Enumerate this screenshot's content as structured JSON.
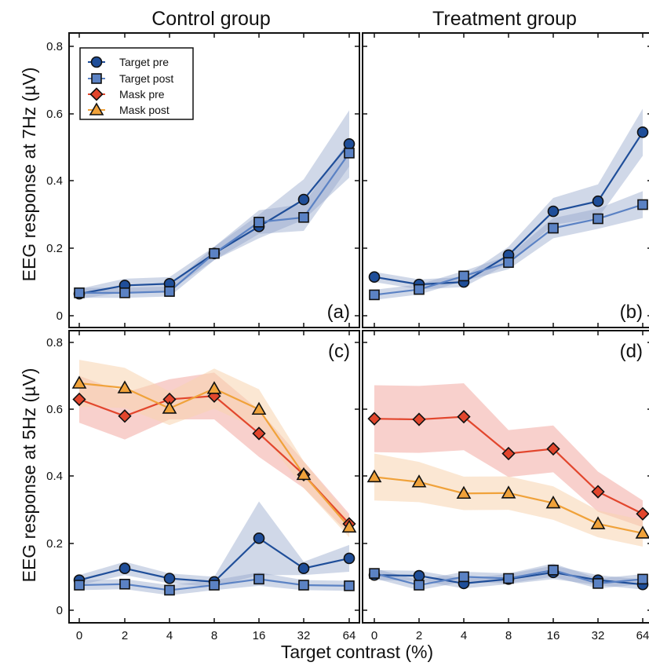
{
  "colors": {
    "target_pre": "#1f4e99",
    "target_post": "#5b82c4",
    "mask_pre": "#e2462d",
    "mask_post": "#f0a23a",
    "band_target": "#8ea3c9",
    "band_mask_pre": "#f3a9a2",
    "band_mask_post": "#f8d3ae"
  },
  "column_titles": [
    "Control group",
    "Treatment group"
  ],
  "ylabel_top": "EEG response at 7Hz (µV)",
  "ylabel_bottom": "EEG response at 5Hz (µV)",
  "xlabel": "Target contrast (%)",
  "legend": {
    "placement": "top-left of panel (a)",
    "items": [
      {
        "label": "Target pre",
        "marker": "circle",
        "color_key": "target_pre"
      },
      {
        "label": "Target post",
        "marker": "square",
        "color_key": "target_post"
      },
      {
        "label": "Mask pre",
        "marker": "diamond",
        "color_key": "mask_pre"
      },
      {
        "label": "Mask post",
        "marker": "triangle",
        "color_key": "mask_post"
      }
    ]
  },
  "chart_data": [
    {
      "type": "line",
      "panel": "(a)",
      "categories": [
        "0",
        "2",
        "4",
        "8",
        "16",
        "32",
        "64"
      ],
      "ylim": [
        -0.03,
        0.83
      ],
      "yticks": [
        "0",
        "0.2",
        "0.4",
        "0.6",
        "0.8"
      ],
      "series": [
        {
          "name": "Target pre",
          "values": [
            0.065,
            0.09,
            0.095,
            0.185,
            0.265,
            0.345,
            0.51
          ],
          "band": [
            0.015,
            0.02,
            0.02,
            0.02,
            0.035,
            0.06,
            0.1
          ]
        },
        {
          "name": "Target post",
          "values": [
            0.068,
            0.068,
            0.072,
            0.185,
            0.278,
            0.292,
            0.483
          ],
          "band": [
            0.015,
            0.015,
            0.015,
            0.02,
            0.035,
            0.04,
            0.04
          ]
        }
      ]
    },
    {
      "type": "line",
      "panel": "(b)",
      "categories": [
        "0",
        "2",
        "4",
        "8",
        "16",
        "32",
        "64"
      ],
      "ylim": [
        -0.03,
        0.83
      ],
      "yticks": [
        "0",
        "0.2",
        "0.4",
        "0.6",
        "0.8"
      ],
      "series": [
        {
          "name": "Target pre",
          "values": [
            0.115,
            0.093,
            0.1,
            0.18,
            0.31,
            0.34,
            0.545
          ],
          "band": [
            0.015,
            0.015,
            0.015,
            0.025,
            0.04,
            0.05,
            0.07
          ]
        },
        {
          "name": "Target post",
          "values": [
            0.062,
            0.078,
            0.118,
            0.158,
            0.26,
            0.288,
            0.33
          ],
          "band": [
            0.015,
            0.015,
            0.015,
            0.02,
            0.03,
            0.03,
            0.04
          ]
        }
      ]
    },
    {
      "type": "line",
      "panel": "(c)",
      "categories": [
        "0",
        "2",
        "4",
        "8",
        "16",
        "32",
        "64"
      ],
      "ylim": [
        -0.03,
        0.83
      ],
      "yticks": [
        "0",
        "0.2",
        "0.4",
        "0.6",
        "0.8"
      ],
      "series": [
        {
          "name": "Target pre",
          "values": [
            0.09,
            0.125,
            0.095,
            0.085,
            0.215,
            0.125,
            0.155
          ],
          "band": [
            0.015,
            0.02,
            0.015,
            0.015,
            0.11,
            0.02,
            0.04
          ]
        },
        {
          "name": "Target post",
          "values": [
            0.075,
            0.078,
            0.06,
            0.075,
            0.093,
            0.075,
            0.073
          ],
          "band": [
            0.015,
            0.015,
            0.015,
            0.015,
            0.02,
            0.015,
            0.015
          ]
        },
        {
          "name": "Mask pre",
          "values": [
            0.63,
            0.58,
            0.63,
            0.64,
            0.528,
            0.405,
            0.258
          ],
          "band": [
            0.07,
            0.07,
            0.06,
            0.07,
            0.07,
            0.04,
            0.03
          ]
        },
        {
          "name": "Mask post",
          "values": [
            0.678,
            0.664,
            0.603,
            0.662,
            0.6,
            0.405,
            0.248
          ],
          "band": [
            0.07,
            0.06,
            0.05,
            0.06,
            0.06,
            0.04,
            0.03
          ]
        }
      ]
    },
    {
      "type": "line",
      "panel": "(d)",
      "categories": [
        "0",
        "2",
        "4",
        "8",
        "16",
        "32",
        "64"
      ],
      "ylim": [
        -0.03,
        0.83
      ],
      "yticks": [
        "0",
        "0.2",
        "0.4",
        "0.6",
        "0.8"
      ],
      "series": [
        {
          "name": "Target pre",
          "values": [
            0.105,
            0.103,
            0.08,
            0.093,
            0.113,
            0.09,
            0.077
          ],
          "band": [
            0.015,
            0.015,
            0.015,
            0.015,
            0.02,
            0.015,
            0.015
          ]
        },
        {
          "name": "Target post",
          "values": [
            0.11,
            0.075,
            0.1,
            0.095,
            0.12,
            0.08,
            0.093
          ],
          "band": [
            0.015,
            0.015,
            0.015,
            0.015,
            0.02,
            0.015,
            0.015
          ]
        },
        {
          "name": "Mask pre",
          "values": [
            0.572,
            0.57,
            0.578,
            0.468,
            0.482,
            0.354,
            0.288
          ],
          "band": [
            0.1,
            0.1,
            0.1,
            0.07,
            0.07,
            0.06,
            0.04
          ]
        },
        {
          "name": "Mask post",
          "values": [
            0.398,
            0.383,
            0.349,
            0.35,
            0.32,
            0.258,
            0.23
          ],
          "band": [
            0.07,
            0.06,
            0.05,
            0.05,
            0.05,
            0.04,
            0.04
          ]
        }
      ]
    }
  ]
}
